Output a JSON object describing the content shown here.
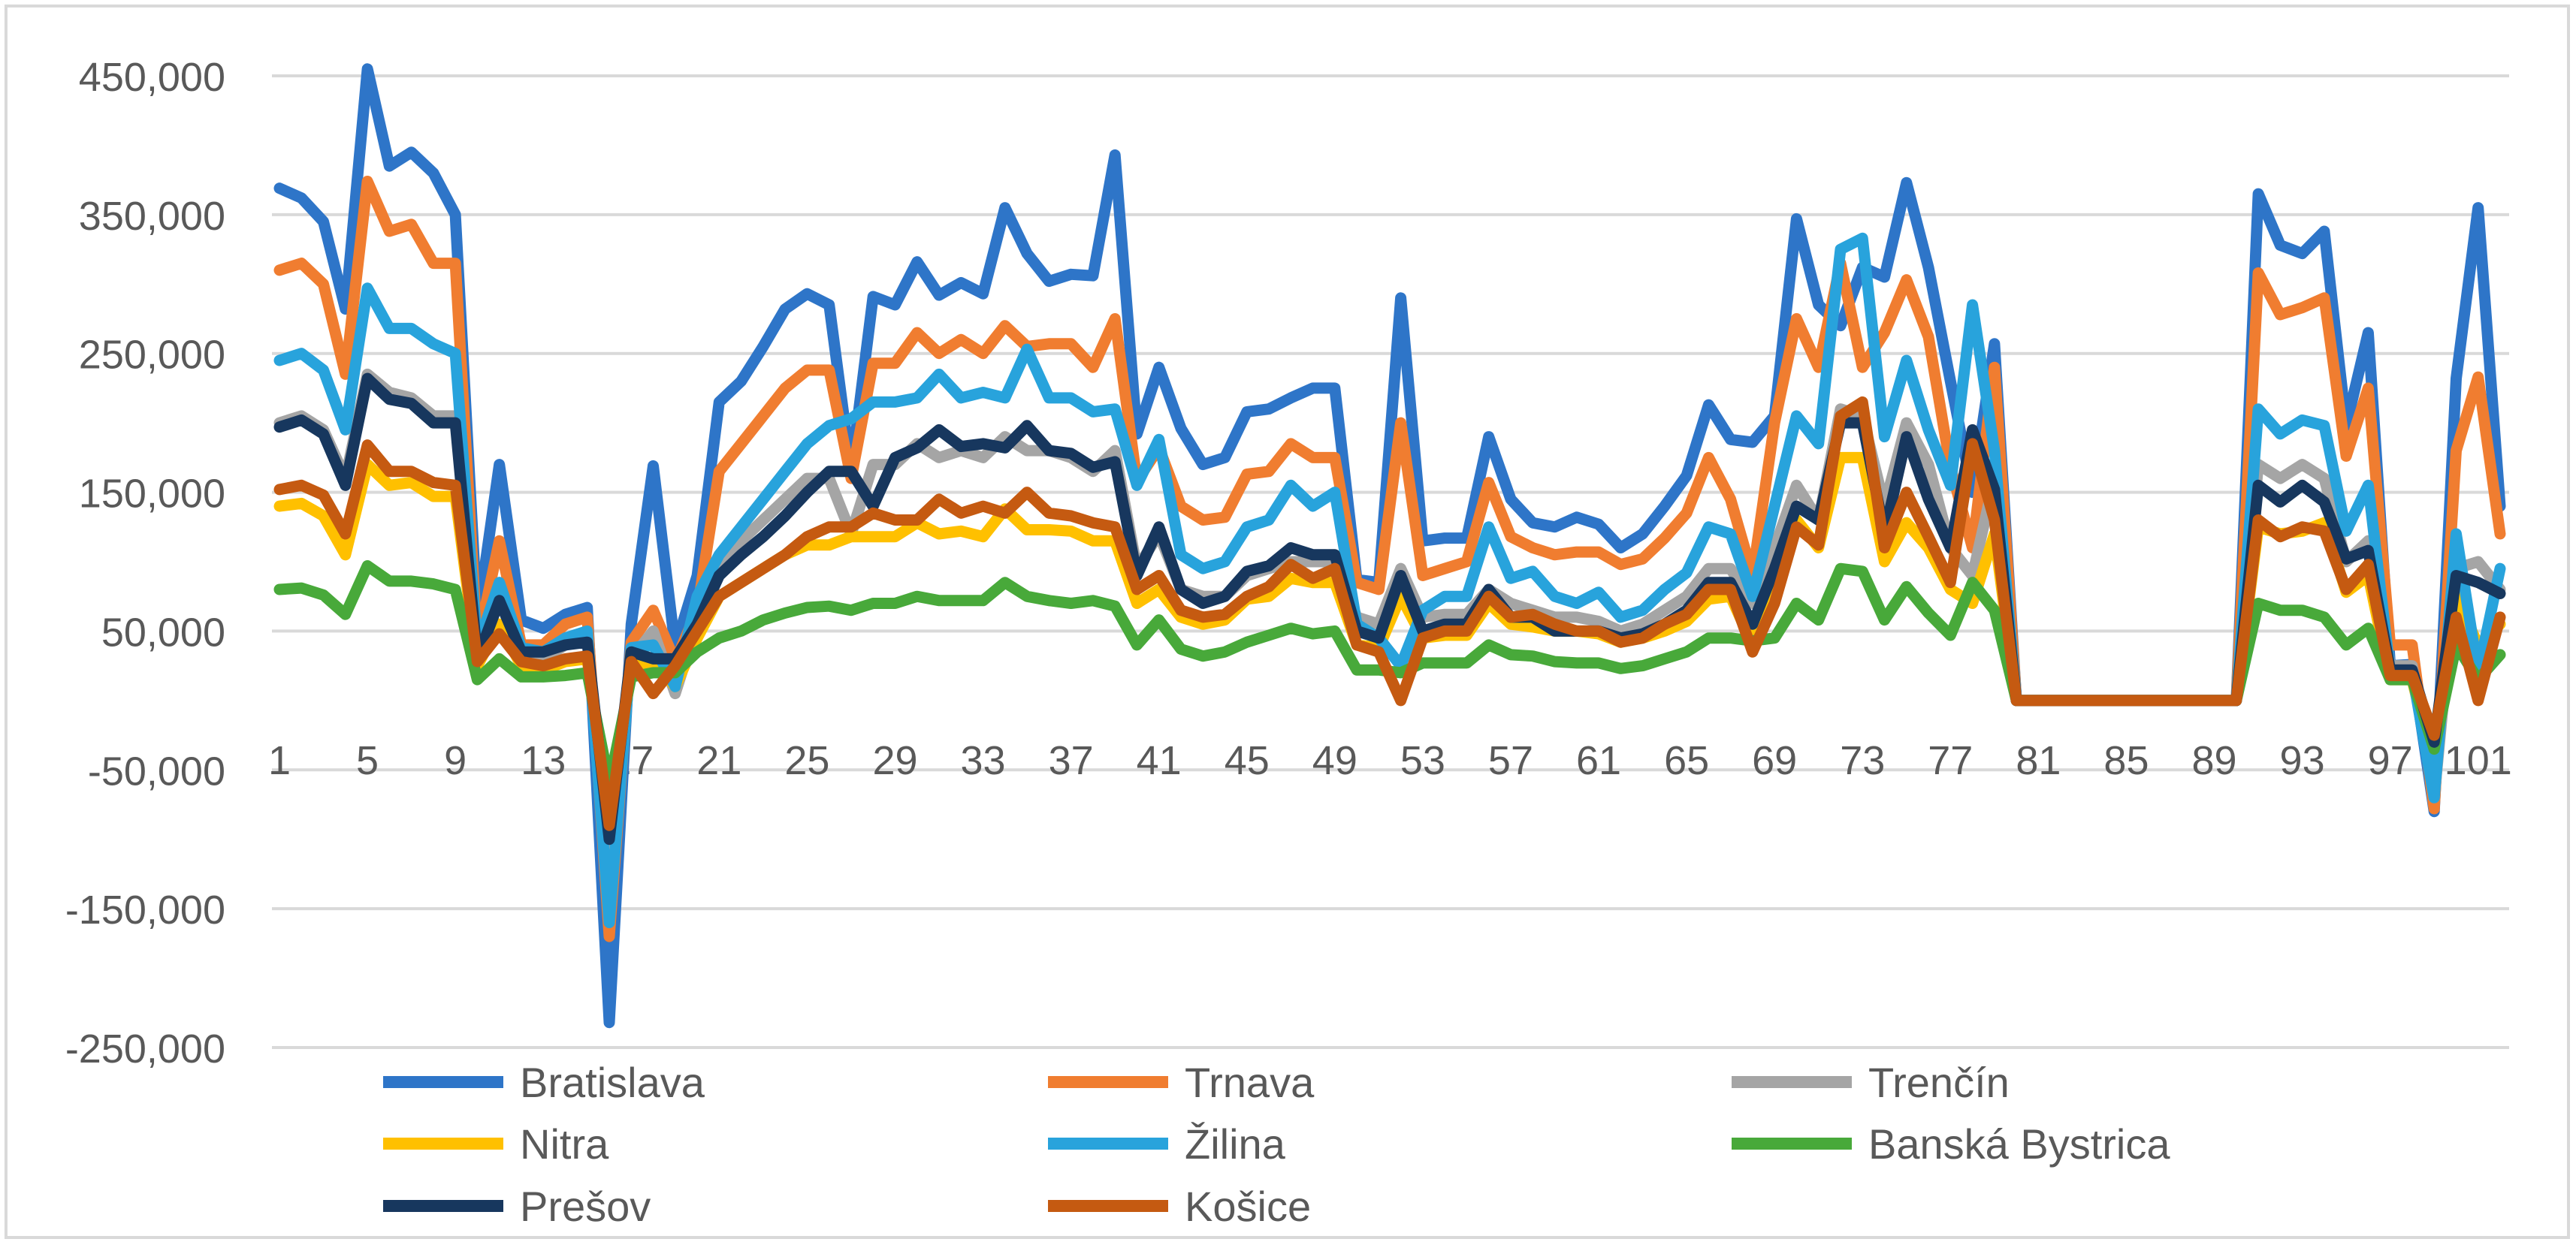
{
  "chart_data": {
    "type": "line",
    "title": "",
    "xlabel": "",
    "ylabel": "",
    "ylim": [
      -250000,
      450000
    ],
    "y_ticks": [
      -250000,
      -150000,
      -50000,
      50000,
      150000,
      250000,
      350000,
      450000
    ],
    "y_tick_labels": [
      "-250,000",
      "-150,000",
      "-50,000",
      "50,000",
      "150,000",
      "250,000",
      "350,000",
      "450,000"
    ],
    "x_tick_labels": [
      "1",
      "5",
      "9",
      "13",
      "17",
      "21",
      "25",
      "29",
      "33",
      "37",
      "41",
      "45",
      "49",
      "53",
      "57",
      "61",
      "65",
      "69",
      "73",
      "77",
      "81",
      "85",
      "89",
      "93",
      "97",
      "101"
    ],
    "x": [
      1,
      2,
      3,
      4,
      5,
      6,
      7,
      8,
      9,
      10,
      11,
      12,
      13,
      14,
      15,
      16,
      17,
      18,
      19,
      20,
      21,
      22,
      23,
      24,
      25,
      26,
      27,
      28,
      29,
      30,
      31,
      32,
      33,
      34,
      35,
      36,
      37,
      38,
      39,
      40,
      41,
      42,
      43,
      44,
      45,
      46,
      47,
      48,
      49,
      50,
      51,
      52,
      53,
      54,
      55,
      56,
      57,
      58,
      59,
      60,
      61,
      62,
      63,
      64,
      65,
      66,
      67,
      68,
      69,
      70,
      71,
      72,
      73,
      74,
      75,
      76,
      77,
      78,
      79,
      80,
      81,
      82,
      83,
      84,
      85,
      86,
      87,
      88,
      89,
      90,
      91,
      92,
      93,
      94,
      95,
      96,
      97,
      98,
      99,
      100,
      101,
      102
    ],
    "xlim": [
      1,
      102
    ],
    "grid": true,
    "legend_position": "bottom",
    "series": [
      {
        "name": "Bratislava",
        "color": "#2e75c8",
        "values": [
          369000,
          362000,
          345000,
          282000,
          455000,
          385000,
          395000,
          380000,
          350000,
          58000,
          170000,
          58000,
          52000,
          62000,
          67000,
          -232000,
          55000,
          169000,
          38000,
          90000,
          215000,
          230000,
          255000,
          282000,
          293000,
          285000,
          165000,
          291000,
          285000,
          316000,
          292000,
          301000,
          293000,
          355000,
          322000,
          302000,
          307000,
          306000,
          393000,
          192000,
          240000,
          196000,
          170000,
          175000,
          208000,
          210000,
          218000,
          225000,
          225000,
          87000,
          85000,
          290000,
          115000,
          117000,
          117000,
          190000,
          145000,
          128000,
          125000,
          132000,
          127000,
          110000,
          120000,
          140000,
          162000,
          213000,
          188000,
          186000,
          205000,
          347000,
          285000,
          270000,
          312000,
          305000,
          373000,
          312000,
          230000,
          150000,
          257000,
          0,
          0,
          0,
          0,
          0,
          0,
          0,
          0,
          0,
          0,
          0,
          365000,
          328000,
          322000,
          338000,
          198000,
          265000,
          25000,
          26000,
          -80000,
          232000,
          355000,
          140000
        ]
      },
      {
        "name": "Trnava",
        "color": "#f07d30",
        "values": [
          310000,
          315000,
          300000,
          235000,
          374000,
          338000,
          343000,
          315000,
          315000,
          40000,
          115000,
          40000,
          40000,
          55000,
          60000,
          -170000,
          42000,
          65000,
          28000,
          65000,
          165000,
          185000,
          205000,
          225000,
          238000,
          238000,
          160000,
          243000,
          243000,
          265000,
          250000,
          260000,
          250000,
          270000,
          255000,
          257000,
          257000,
          240000,
          275000,
          158000,
          182000,
          140000,
          130000,
          132000,
          163000,
          165000,
          185000,
          175000,
          175000,
          85000,
          80000,
          200000,
          90000,
          95000,
          100000,
          157000,
          118000,
          110000,
          105000,
          107000,
          107000,
          98000,
          102000,
          117000,
          135000,
          175000,
          145000,
          90000,
          200000,
          275000,
          240000,
          315000,
          240000,
          265000,
          303000,
          262000,
          168000,
          110000,
          240000,
          0,
          0,
          0,
          0,
          0,
          0,
          0,
          0,
          0,
          0,
          0,
          308000,
          278000,
          283000,
          290000,
          176000,
          225000,
          40000,
          40000,
          -78000,
          180000,
          233000,
          120000
        ]
      },
      {
        "name": "Trenčín",
        "color": "#a5a5a5",
        "values": [
          200000,
          205000,
          195000,
          160000,
          235000,
          222000,
          218000,
          205000,
          205000,
          30000,
          80000,
          30000,
          30000,
          40000,
          45000,
          -120000,
          30000,
          50000,
          5000,
          55000,
          100000,
          115000,
          130000,
          145000,
          160000,
          160000,
          120000,
          170000,
          170000,
          185000,
          175000,
          180000,
          175000,
          190000,
          180000,
          180000,
          175000,
          165000,
          180000,
          95000,
          120000,
          80000,
          75000,
          75000,
          90000,
          95000,
          100000,
          100000,
          100000,
          60000,
          55000,
          95000,
          60000,
          62000,
          62000,
          80000,
          70000,
          65000,
          60000,
          60000,
          57000,
          50000,
          55000,
          65000,
          75000,
          95000,
          95000,
          70000,
          110000,
          155000,
          130000,
          210000,
          205000,
          140000,
          200000,
          170000,
          110000,
          90000,
          160000,
          0,
          0,
          0,
          0,
          0,
          0,
          0,
          0,
          0,
          0,
          0,
          170000,
          160000,
          170000,
          160000,
          100000,
          115000,
          25000,
          25000,
          -70000,
          95000,
          100000,
          80000
        ]
      },
      {
        "name": "Nitra",
        "color": "#ffc000",
        "values": [
          140000,
          142000,
          133000,
          105000,
          170000,
          155000,
          157000,
          147000,
          147000,
          25000,
          55000,
          25000,
          22000,
          28000,
          30000,
          -90000,
          25000,
          28000,
          10000,
          45000,
          75000,
          85000,
          95000,
          105000,
          112000,
          112000,
          118000,
          118000,
          118000,
          128000,
          120000,
          122000,
          118000,
          138000,
          123000,
          123000,
          122000,
          115000,
          115000,
          70000,
          80000,
          60000,
          55000,
          58000,
          73000,
          75000,
          88000,
          85000,
          85000,
          40000,
          38000,
          75000,
          45000,
          47000,
          47000,
          70000,
          55000,
          53000,
          50000,
          50000,
          48000,
          42000,
          45000,
          50000,
          57000,
          73000,
          75000,
          40000,
          85000,
          130000,
          110000,
          175000,
          175000,
          100000,
          128000,
          110000,
          80000,
          70000,
          120000,
          0,
          0,
          0,
          0,
          0,
          0,
          0,
          0,
          0,
          0,
          0,
          125000,
          120000,
          122000,
          128000,
          78000,
          90000,
          15000,
          15000,
          -50000,
          75000,
          40000,
          55000
        ]
      },
      {
        "name": "Žilina",
        "color": "#28a3dc",
        "values": [
          245000,
          250000,
          238000,
          195000,
          297000,
          268000,
          268000,
          257000,
          250000,
          38000,
          85000,
          38000,
          35000,
          45000,
          50000,
          -160000,
          38000,
          40000,
          10000,
          75000,
          105000,
          125000,
          145000,
          165000,
          185000,
          198000,
          203000,
          215000,
          215000,
          218000,
          235000,
          218000,
          222000,
          218000,
          253000,
          218000,
          218000,
          208000,
          210000,
          155000,
          188000,
          105000,
          95000,
          100000,
          125000,
          130000,
          155000,
          140000,
          150000,
          55000,
          45000,
          25000,
          65000,
          75000,
          75000,
          125000,
          88000,
          93000,
          75000,
          70000,
          78000,
          60000,
          65000,
          80000,
          92000,
          125000,
          120000,
          75000,
          140000,
          205000,
          185000,
          325000,
          333000,
          190000,
          245000,
          195000,
          155000,
          285000,
          180000,
          0,
          0,
          0,
          0,
          0,
          0,
          0,
          0,
          0,
          0,
          0,
          210000,
          192000,
          202000,
          198000,
          122000,
          155000,
          20000,
          20000,
          -70000,
          120000,
          20000,
          95000
        ]
      },
      {
        "name": "Banská Bystrica",
        "color": "#48a93a",
        "values": [
          80000,
          81000,
          76000,
          62000,
          97000,
          86000,
          86000,
          84000,
          80000,
          15000,
          30000,
          17000,
          17000,
          18000,
          20000,
          -60000,
          17000,
          20000,
          20000,
          35000,
          45000,
          50000,
          58000,
          63000,
          67000,
          68000,
          65000,
          70000,
          70000,
          75000,
          72000,
          72000,
          72000,
          85000,
          75000,
          72000,
          70000,
          72000,
          68000,
          40000,
          58000,
          37000,
          32000,
          35000,
          42000,
          47000,
          52000,
          48000,
          50000,
          22000,
          22000,
          20000,
          27000,
          27000,
          27000,
          40000,
          33000,
          32000,
          28000,
          27000,
          27000,
          23000,
          25000,
          30000,
          35000,
          45000,
          45000,
          43000,
          45000,
          70000,
          58000,
          95000,
          93000,
          58000,
          82000,
          63000,
          47000,
          85000,
          65000,
          0,
          0,
          0,
          0,
          0,
          0,
          0,
          0,
          0,
          0,
          0,
          70000,
          65000,
          65000,
          60000,
          40000,
          52000,
          15000,
          15000,
          -35000,
          40000,
          15000,
          33000
        ]
      },
      {
        "name": "Prešov",
        "color": "#17375e",
        "values": [
          197000,
          202000,
          192000,
          155000,
          232000,
          217000,
          214000,
          200000,
          200000,
          30000,
          72000,
          35000,
          35000,
          40000,
          42000,
          -100000,
          35000,
          30000,
          30000,
          55000,
          90000,
          105000,
          118000,
          133000,
          150000,
          165000,
          165000,
          140000,
          175000,
          182000,
          195000,
          183000,
          185000,
          182000,
          198000,
          180000,
          178000,
          168000,
          172000,
          90000,
          125000,
          80000,
          70000,
          75000,
          93000,
          97000,
          110000,
          105000,
          105000,
          50000,
          45000,
          90000,
          50000,
          55000,
          55000,
          80000,
          60000,
          60000,
          50000,
          50000,
          50000,
          45000,
          48000,
          55000,
          65000,
          85000,
          85000,
          55000,
          95000,
          140000,
          130000,
          200000,
          200000,
          120000,
          190000,
          145000,
          110000,
          195000,
          152000,
          0,
          0,
          0,
          0,
          0,
          0,
          0,
          0,
          0,
          0,
          0,
          155000,
          143000,
          155000,
          143000,
          102000,
          108000,
          22000,
          22000,
          -30000,
          90000,
          85000,
          77000
        ]
      },
      {
        "name": "Košice",
        "color": "#c55a11",
        "values": [
          152000,
          155000,
          148000,
          120000,
          184000,
          165000,
          165000,
          157000,
          155000,
          28000,
          48000,
          28000,
          25000,
          30000,
          32000,
          -90000,
          28000,
          5000,
          25000,
          50000,
          75000,
          85000,
          95000,
          105000,
          118000,
          125000,
          125000,
          135000,
          130000,
          130000,
          145000,
          135000,
          140000,
          135000,
          150000,
          135000,
          133000,
          128000,
          125000,
          80000,
          90000,
          65000,
          60000,
          62000,
          75000,
          82000,
          98000,
          88000,
          95000,
          40000,
          35000,
          0,
          45000,
          50000,
          50000,
          75000,
          60000,
          62000,
          55000,
          50000,
          50000,
          42000,
          45000,
          55000,
          62000,
          80000,
          80000,
          35000,
          70000,
          125000,
          112000,
          205000,
          215000,
          110000,
          150000,
          118000,
          85000,
          185000,
          130000,
          0,
          0,
          0,
          0,
          0,
          0,
          0,
          0,
          0,
          0,
          0,
          130000,
          118000,
          125000,
          122000,
          80000,
          98000,
          18000,
          18000,
          -25000,
          60000,
          0,
          60000
        ]
      }
    ]
  }
}
